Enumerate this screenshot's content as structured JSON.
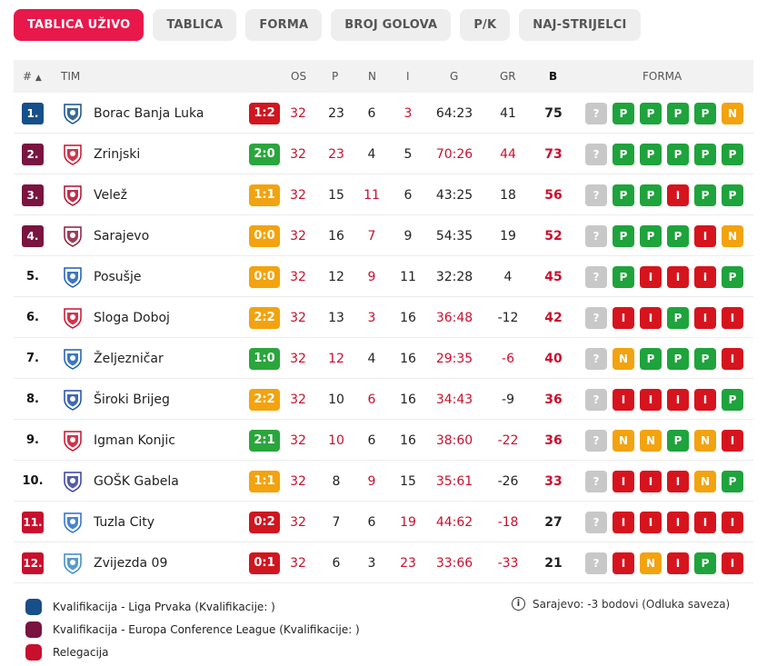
{
  "tabs": [
    {
      "label": "TABLICA UŽIVO",
      "active": true
    },
    {
      "label": "TABLICA",
      "active": false
    },
    {
      "label": "FORMA",
      "active": false
    },
    {
      "label": "BROJ GOLOVA",
      "active": false
    },
    {
      "label": "P/K",
      "active": false
    },
    {
      "label": "NAJ-STRIJELCI",
      "active": false
    }
  ],
  "header": {
    "rank": "#",
    "sort_arrow": "▲",
    "team": "TIM",
    "played": "OS",
    "won": "P",
    "draw": "N",
    "lost": "I",
    "goals": "G",
    "diff": "GR",
    "points": "B",
    "form": "FORMA"
  },
  "colors": {
    "accent": "#e8184b",
    "champions": "#174f8a",
    "conference": "#7a1440",
    "relegation": "#c8102e",
    "score_win": "#2aa63c",
    "score_draw": "#f2a30f",
    "score_loss": "#d0161f",
    "form_P": "#1fa33c",
    "form_N": "#f2a30f",
    "form_I": "#d6141d",
    "form_unknown": "#c8c8c8"
  },
  "rows": [
    {
      "rank": "1.",
      "zone": "champions",
      "team": "Borac Banja Luka",
      "crest": "borac-crest-icon",
      "score": "1:2",
      "score_result": "loss",
      "played": "32",
      "won": "23",
      "draw": "6",
      "lost": "3",
      "goals": "64:23",
      "diff": "41",
      "points": "75",
      "form": [
        "?",
        "P",
        "P",
        "P",
        "P",
        "N"
      ]
    },
    {
      "rank": "2.",
      "zone": "conference",
      "team": "Zrinjski",
      "crest": "zrinjski-crest-icon",
      "score": "2:0",
      "score_result": "win",
      "played": "32",
      "won": "23",
      "draw": "4",
      "lost": "5",
      "goals": "70:26",
      "diff": "44",
      "points": "73",
      "form": [
        "?",
        "P",
        "P",
        "P",
        "P",
        "P"
      ]
    },
    {
      "rank": "3.",
      "zone": "conference",
      "team": "Velež",
      "crest": "velez-crest-icon",
      "score": "1:1",
      "score_result": "draw",
      "played": "32",
      "won": "15",
      "draw": "11",
      "lost": "6",
      "goals": "43:25",
      "diff": "18",
      "points": "56",
      "form": [
        "?",
        "P",
        "P",
        "I",
        "P",
        "P"
      ]
    },
    {
      "rank": "4.",
      "zone": "conference",
      "team": "Sarajevo",
      "crest": "sarajevo-crest-icon",
      "score": "0:0",
      "score_result": "draw",
      "played": "32",
      "won": "16",
      "draw": "7",
      "lost": "9",
      "goals": "54:35",
      "diff": "19",
      "points": "52",
      "form": [
        "?",
        "P",
        "P",
        "P",
        "I",
        "N"
      ]
    },
    {
      "rank": "5.",
      "zone": "none",
      "team": "Posušje",
      "crest": "posusje-crest-icon",
      "score": "0:0",
      "score_result": "draw",
      "played": "32",
      "won": "12",
      "draw": "9",
      "lost": "11",
      "goals": "32:28",
      "diff": "4",
      "points": "45",
      "form": [
        "?",
        "P",
        "I",
        "I",
        "I",
        "P"
      ]
    },
    {
      "rank": "6.",
      "zone": "none",
      "team": "Sloga Doboj",
      "crest": "sloga-crest-icon",
      "score": "2:2",
      "score_result": "draw",
      "played": "32",
      "won": "13",
      "draw": "3",
      "lost": "16",
      "goals": "36:48",
      "diff": "-12",
      "points": "42",
      "form": [
        "?",
        "I",
        "I",
        "P",
        "I",
        "I"
      ]
    },
    {
      "rank": "7.",
      "zone": "none",
      "team": "Željezničar",
      "crest": "zeljeznicar-crest-icon",
      "score": "1:0",
      "score_result": "win",
      "played": "32",
      "won": "12",
      "draw": "4",
      "lost": "16",
      "goals": "29:35",
      "diff": "-6",
      "points": "40",
      "form": [
        "?",
        "N",
        "P",
        "P",
        "P",
        "I"
      ]
    },
    {
      "rank": "8.",
      "zone": "none",
      "team": "Široki Brijeg",
      "crest": "siroki-crest-icon",
      "score": "2:2",
      "score_result": "draw",
      "played": "32",
      "won": "10",
      "draw": "6",
      "lost": "16",
      "goals": "34:43",
      "diff": "-9",
      "points": "36",
      "form": [
        "?",
        "I",
        "I",
        "I",
        "I",
        "P"
      ]
    },
    {
      "rank": "9.",
      "zone": "none",
      "team": "Igman Konjic",
      "crest": "igman-crest-icon",
      "score": "2:1",
      "score_result": "win",
      "played": "32",
      "won": "10",
      "draw": "6",
      "lost": "16",
      "goals": "38:60",
      "diff": "-22",
      "points": "36",
      "form": [
        "?",
        "N",
        "N",
        "P",
        "N",
        "I"
      ]
    },
    {
      "rank": "10.",
      "zone": "none",
      "team": "GOŠK Gabela",
      "crest": "gosk-crest-icon",
      "score": "1:1",
      "score_result": "draw",
      "played": "32",
      "won": "8",
      "draw": "9",
      "lost": "15",
      "goals": "35:61",
      "diff": "-26",
      "points": "33",
      "form": [
        "?",
        "I",
        "I",
        "I",
        "N",
        "P"
      ]
    },
    {
      "rank": "11.",
      "zone": "relegation",
      "team": "Tuzla City",
      "crest": "tuzla-crest-icon",
      "score": "0:2",
      "score_result": "loss",
      "played": "32",
      "won": "7",
      "draw": "6",
      "lost": "19",
      "goals": "44:62",
      "diff": "-18",
      "points": "27",
      "form": [
        "?",
        "I",
        "I",
        "I",
        "I",
        "I"
      ]
    },
    {
      "rank": "12.",
      "zone": "relegation",
      "team": "Zvijezda 09",
      "crest": "zvijezda-crest-icon",
      "score": "0:1",
      "score_result": "loss",
      "played": "32",
      "won": "6",
      "draw": "3",
      "lost": "23",
      "goals": "33:66",
      "diff": "-33",
      "points": "21",
      "form": [
        "?",
        "I",
        "N",
        "I",
        "P",
        "I"
      ]
    }
  ],
  "legend": [
    {
      "zone": "champions",
      "label": "Kvalifikacija - Liga Prvaka (Kvalifikacije: )"
    },
    {
      "zone": "conference",
      "label": "Kvalifikacija - Europa Conference League (Kvalifikacije: )"
    },
    {
      "zone": "relegation",
      "label": "Relegacija"
    }
  ],
  "note": {
    "icon": "info-icon",
    "text": "Sarajevo: -3 bodovi (Odluka saveza)"
  }
}
